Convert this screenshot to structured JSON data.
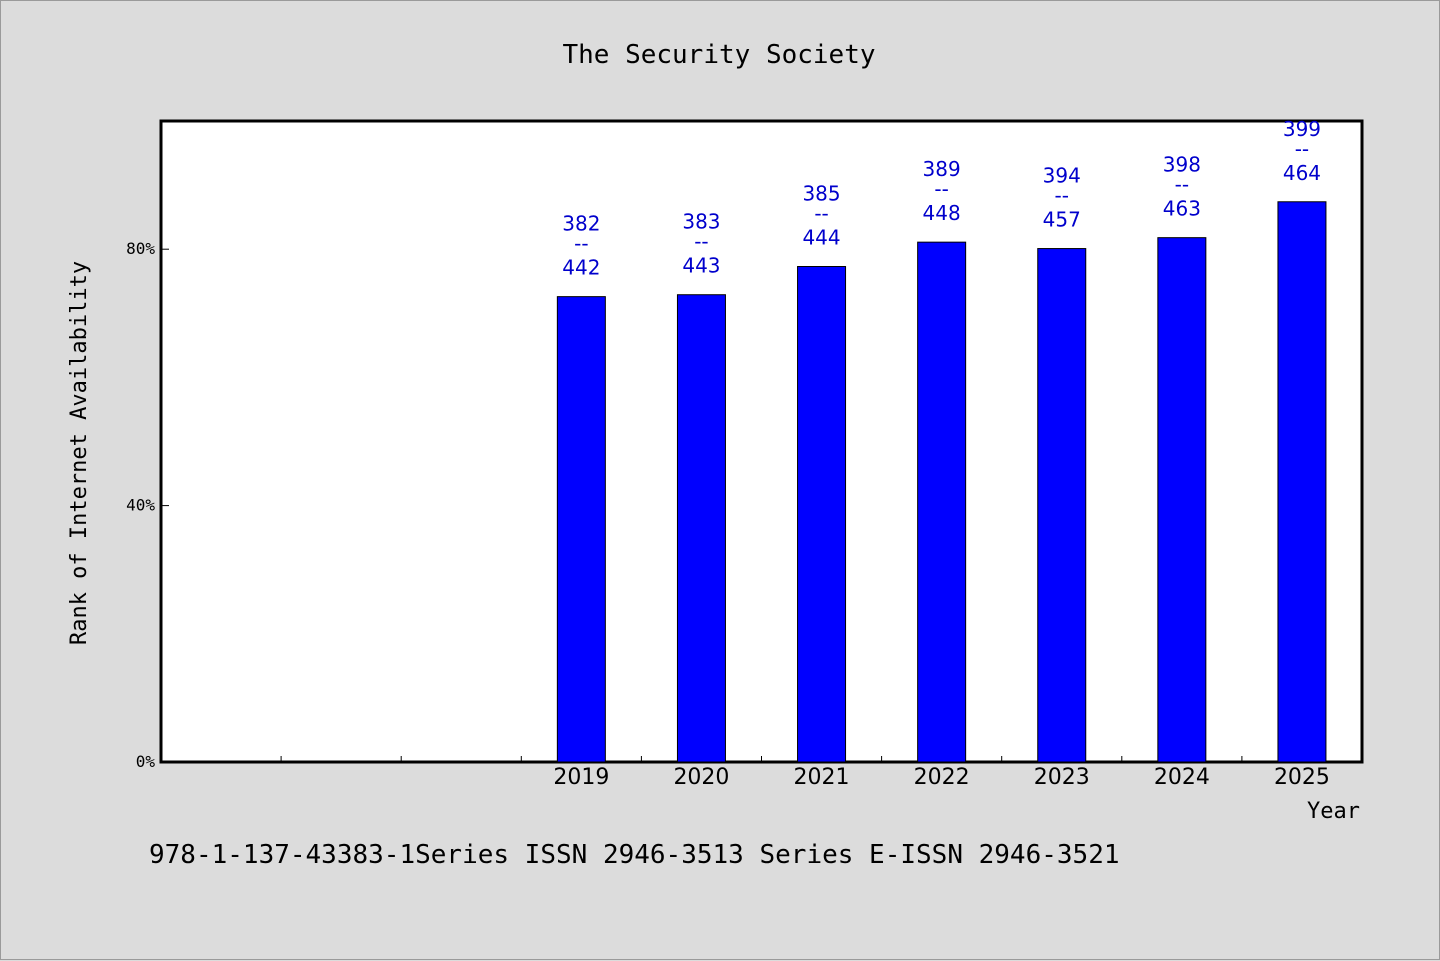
{
  "chart_data": {
    "type": "bar",
    "title": "The Security Society",
    "ylabel": "Rank of Internet Availability",
    "xlabel": "Year",
    "y_ticks": [
      "0%",
      "40%",
      "80%"
    ],
    "y_tick_values": [
      0,
      40,
      80
    ],
    "ylim": [
      0,
      100
    ],
    "x_slots": 10,
    "categories": [
      "2019",
      "2020",
      "2021",
      "2022",
      "2023",
      "2024",
      "2025"
    ],
    "category_slot_start": 3,
    "values": [
      72.6,
      72.9,
      77.3,
      81.1,
      80.1,
      81.8,
      87.4
    ],
    "data_labels": [
      {
        "top": "382",
        "sep": "--",
        "bottom": "442"
      },
      {
        "top": "383",
        "sep": "--",
        "bottom": "443"
      },
      {
        "top": "385",
        "sep": "--",
        "bottom": "444"
      },
      {
        "top": "389",
        "sep": "--",
        "bottom": "448"
      },
      {
        "top": "394",
        "sep": "--",
        "bottom": "457"
      },
      {
        "top": "398",
        "sep": "--",
        "bottom": "463"
      },
      {
        "top": "399",
        "sep": "--",
        "bottom": "464"
      }
    ],
    "colors": {
      "bar_fill": "#0000ff",
      "bar_stroke": "#000000",
      "label": "#0000cc",
      "plot_bg": "#ffffff",
      "page_bg": "#dcdcdc"
    },
    "grid": false,
    "legend": "none"
  },
  "footer": "978-1-137-43383-1Series ISSN 2946-3513 Series E-ISSN 2946-3521"
}
